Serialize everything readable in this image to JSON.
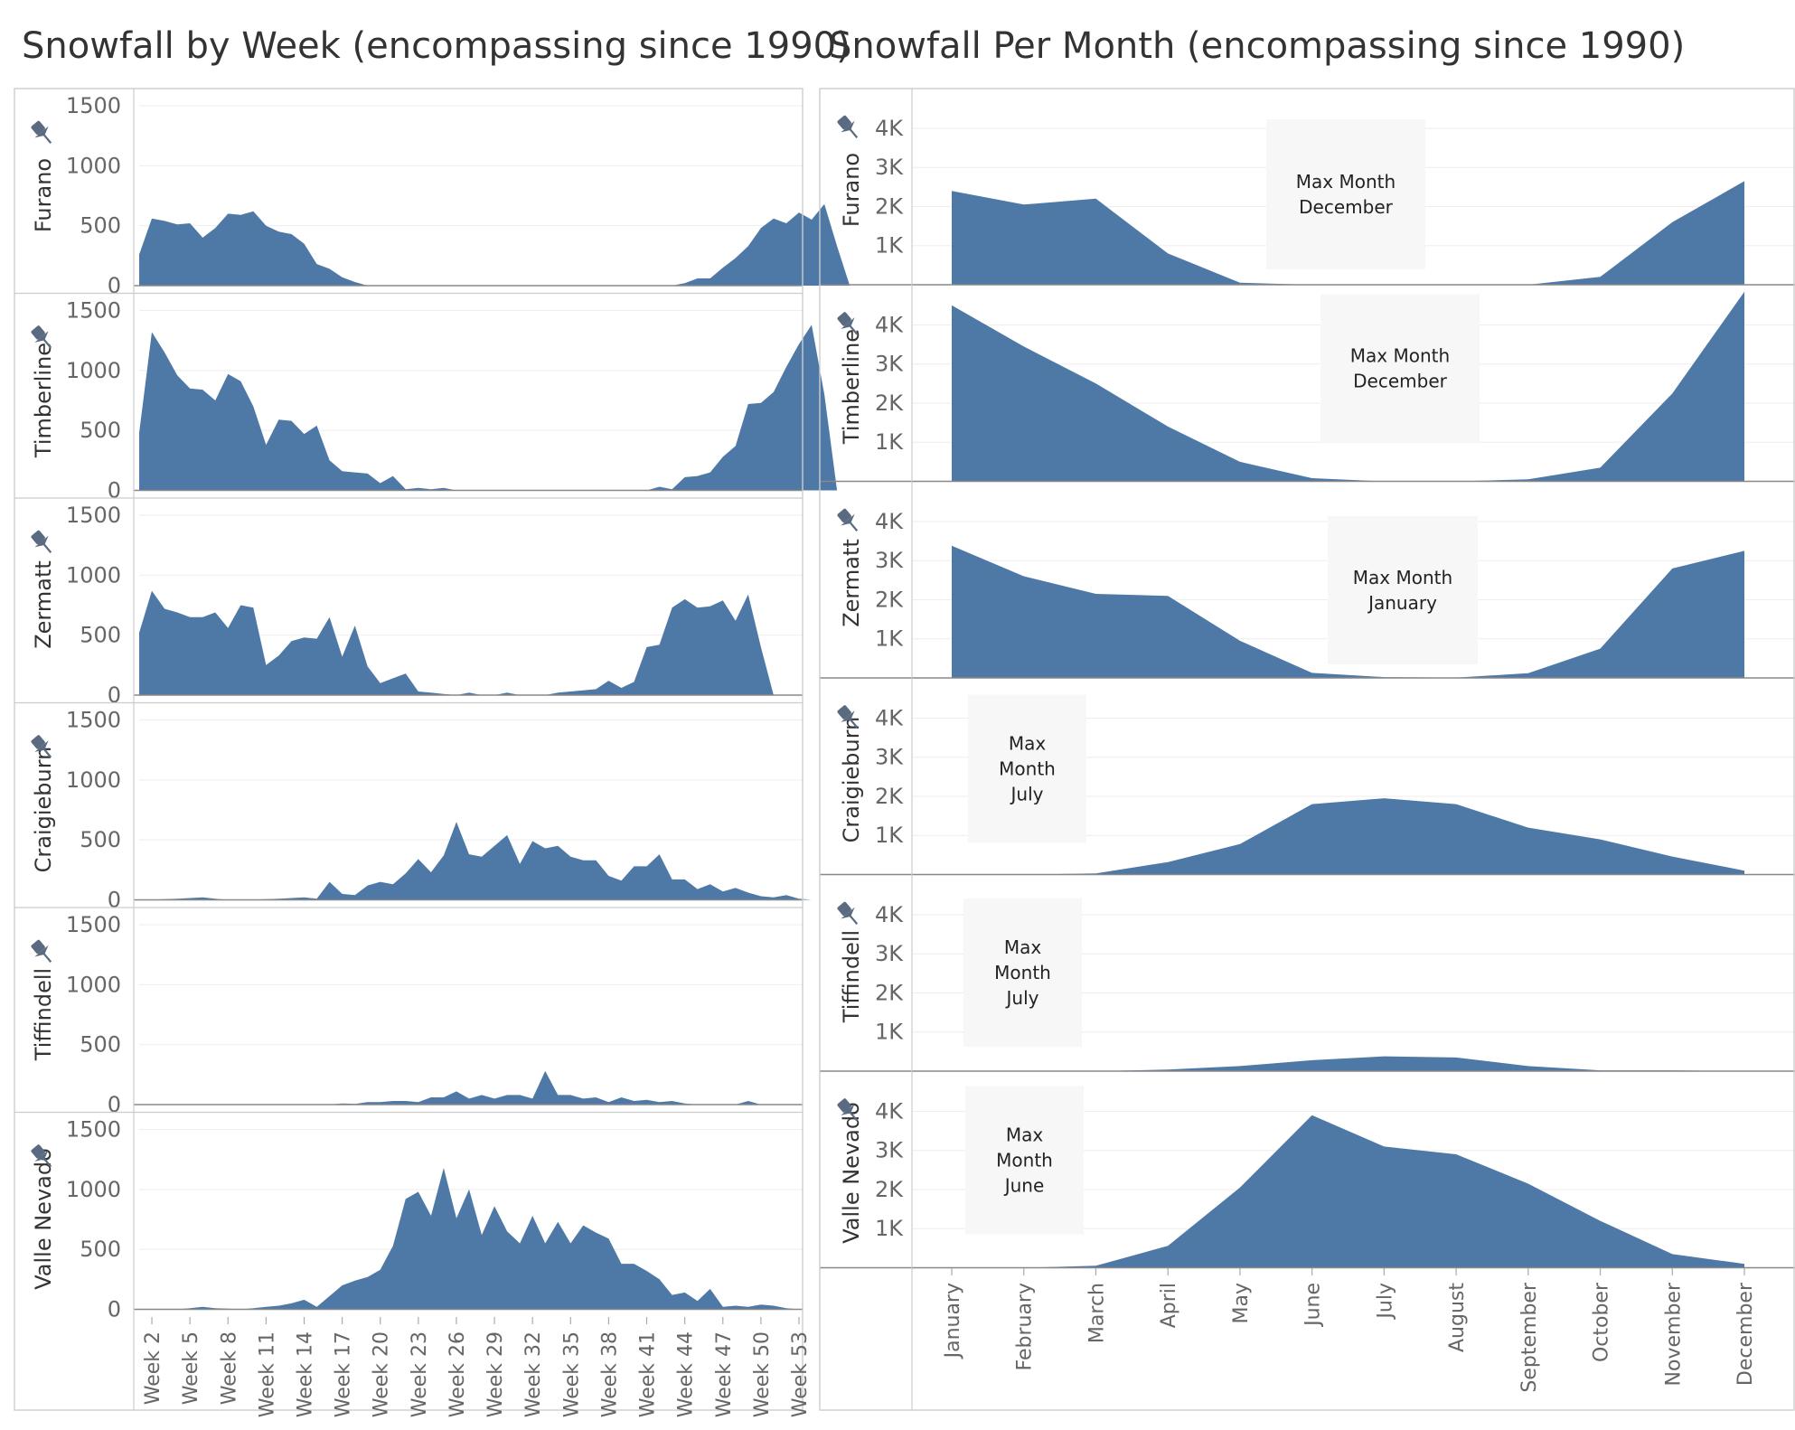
{
  "colors": {
    "area": "#4e79a7",
    "pin": "#5a6a80",
    "annotation_bg": "#f7f7f7"
  },
  "icons": {
    "pin": "pin-icon"
  },
  "chart_data": [
    {
      "type": "area",
      "title": "Snowfall by Week (encompassing since 1990)",
      "y_ticks": [
        "0",
        "500",
        "1000",
        "1500"
      ],
      "ylim": [
        0,
        1500
      ],
      "x_tick_labels": [
        "Week 2",
        "Week 5",
        "Week 8",
        "Week 11",
        "Week 14",
        "Week 17",
        "Week 20",
        "Week 23",
        "Week 26",
        "Week 29",
        "Week 32",
        "Week 35",
        "Week 38",
        "Week 41",
        "Week 44",
        "Week 47",
        "Week 50",
        "Week 53"
      ],
      "x_start_week": 1,
      "rows": [
        {
          "name": "Furano",
          "values": [
            260,
            560,
            540,
            510,
            520,
            400,
            480,
            600,
            590,
            620,
            500,
            450,
            430,
            350,
            180,
            140,
            70,
            30,
            0,
            0,
            0,
            0,
            0,
            0,
            0,
            0,
            0,
            0,
            0,
            0,
            0,
            0,
            0,
            0,
            0,
            0,
            0,
            0,
            0,
            0,
            0,
            0,
            0,
            20,
            60,
            60,
            150,
            230,
            330,
            480,
            560,
            520,
            610,
            550,
            680,
            330,
            0
          ]
        },
        {
          "name": "Timberline",
          "values": [
            480,
            1320,
            1150,
            960,
            850,
            840,
            750,
            970,
            910,
            700,
            380,
            590,
            580,
            470,
            540,
            250,
            160,
            150,
            140,
            60,
            120,
            10,
            20,
            10,
            20,
            0,
            0,
            0,
            0,
            0,
            0,
            0,
            0,
            0,
            0,
            0,
            0,
            0,
            0,
            0,
            0,
            30,
            10,
            110,
            120,
            150,
            280,
            370,
            720,
            730,
            820,
            1030,
            1220,
            1380,
            800,
            0
          ]
        },
        {
          "name": "Zermatt",
          "values": [
            520,
            870,
            720,
            690,
            650,
            650,
            690,
            560,
            750,
            730,
            250,
            330,
            450,
            480,
            470,
            650,
            320,
            580,
            240,
            100,
            140,
            180,
            30,
            20,
            10,
            0,
            20,
            0,
            0,
            20,
            0,
            0,
            0,
            20,
            30,
            40,
            50,
            120,
            60,
            110,
            400,
            420,
            730,
            800,
            730,
            740,
            790,
            620,
            840,
            400,
            0
          ]
        },
        {
          "name": "Craigieburn",
          "values": [
            0,
            0,
            5,
            10,
            15,
            20,
            10,
            0,
            0,
            0,
            5,
            10,
            15,
            20,
            10,
            150,
            50,
            40,
            120,
            150,
            130,
            220,
            340,
            230,
            370,
            650,
            380,
            360,
            450,
            540,
            300,
            490,
            430,
            450,
            360,
            330,
            330,
            200,
            160,
            280,
            280,
            380,
            170,
            170,
            90,
            130,
            70,
            100,
            60,
            30,
            20,
            40,
            10,
            0
          ]
        },
        {
          "name": "Tiffindell",
          "values": [
            0,
            0,
            0,
            0,
            0,
            0,
            0,
            0,
            0,
            0,
            0,
            0,
            0,
            0,
            0,
            0,
            10,
            5,
            20,
            20,
            30,
            30,
            20,
            60,
            60,
            110,
            50,
            80,
            50,
            80,
            80,
            50,
            280,
            80,
            80,
            50,
            60,
            20,
            60,
            30,
            40,
            20,
            30,
            10,
            0,
            0,
            0,
            0,
            30,
            0,
            0,
            0,
            0,
            0
          ]
        },
        {
          "name": "Valle Nevado",
          "values": [
            0,
            0,
            0,
            0,
            10,
            20,
            10,
            5,
            0,
            10,
            20,
            30,
            50,
            80,
            20,
            110,
            200,
            240,
            270,
            330,
            530,
            920,
            980,
            780,
            1180,
            760,
            1000,
            620,
            860,
            650,
            550,
            780,
            550,
            730,
            550,
            700,
            640,
            590,
            380,
            380,
            320,
            250,
            120,
            140,
            70,
            170,
            20,
            30,
            20,
            40,
            30,
            10,
            0
          ]
        }
      ]
    },
    {
      "type": "area",
      "title": "Snowfall Per Month (encompassing since 1990)",
      "y_ticks": [
        "1K",
        "2K",
        "3K",
        "4K"
      ],
      "ylim": [
        0,
        4600
      ],
      "categories": [
        "January",
        "February",
        "March",
        "April",
        "May",
        "June",
        "July",
        "August",
        "September",
        "October",
        "November",
        "December"
      ],
      "rows": [
        {
          "name": "Furano",
          "values": [
            2400,
            2050,
            2200,
            800,
            50,
            0,
            0,
            0,
            0,
            200,
            1600,
            2650
          ],
          "annotation": [
            "Max Month",
            "December"
          ]
        },
        {
          "name": "Timberline",
          "values": [
            4500,
            3450,
            2500,
            1400,
            500,
            80,
            0,
            0,
            50,
            350,
            2250,
            4850
          ],
          "annotation": [
            "Max Month",
            "December"
          ]
        },
        {
          "name": "Zermatt",
          "values": [
            3380,
            2600,
            2150,
            2100,
            950,
            130,
            20,
            10,
            120,
            750,
            2800,
            3250
          ],
          "annotation": [
            "Max Month",
            "January"
          ]
        },
        {
          "name": "Craigieburn",
          "values": [
            0,
            0,
            30,
            320,
            780,
            1800,
            1950,
            1800,
            1200,
            900,
            460,
            100
          ],
          "annotation": [
            "Max",
            "Month",
            "July"
          ]
        },
        {
          "name": "Tiffindell",
          "values": [
            0,
            0,
            0,
            40,
            130,
            280,
            380,
            350,
            130,
            20,
            20,
            0
          ],
          "annotation": [
            "Max",
            "Month",
            "July"
          ]
        },
        {
          "name": "Valle Nevado",
          "values": [
            0,
            0,
            50,
            560,
            2050,
            3900,
            3100,
            2900,
            2150,
            1200,
            350,
            100
          ],
          "annotation": [
            "Max",
            "Month",
            "June"
          ]
        }
      ]
    }
  ]
}
